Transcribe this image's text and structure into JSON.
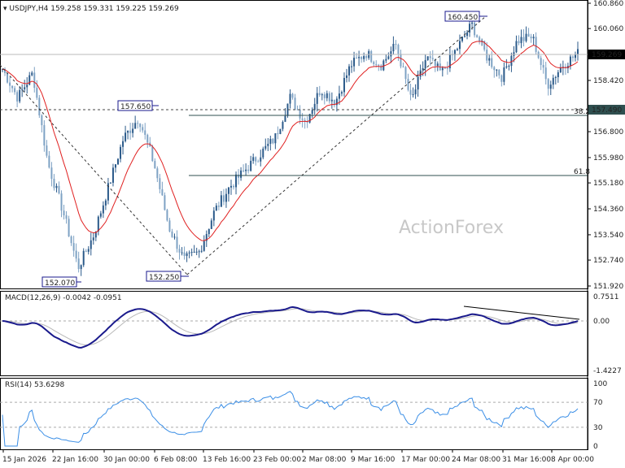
{
  "header": {
    "symbol": "USDJPY,H4",
    "ohlc": "159.258 159.331 159.225 159.269"
  },
  "watermark": "ActionForex",
  "colors": {
    "bull": "#2b5a8a",
    "bear": "#7ea2c4",
    "ma": "#e02020",
    "macd": "#1a1a8c",
    "signal": "#b8b8b8",
    "rsi": "#3a8ee6"
  },
  "chart_data": [
    {
      "type": "candlestick",
      "title": "USDJPY,H4",
      "ylim": [
        151.92,
        160.86
      ],
      "y_ticks": [
        "160.860",
        "160.060",
        "158.420",
        "156.800",
        "155.980",
        "155.180",
        "154.360",
        "153.540",
        "152.740",
        "151.920"
      ],
      "x_ticks": [
        "15 Jan 2026",
        "22 Jan 16:00",
        "30 Jan 00:00",
        "6 Feb 08:00",
        "13 Feb 16:00",
        "23 Feb 00:00",
        "2 Mar 08:00",
        "9 Mar 16:00",
        "17 Mar 00:00",
        "24 Mar 08:00",
        "31 Mar 16:00",
        "8 Apr 00:00"
      ],
      "approx_close_path": [
        158.78,
        157.88,
        158.65,
        155.8,
        154.28,
        152.5,
        153.5,
        155.05,
        156.6,
        157.24,
        155.8,
        153.77,
        152.74,
        153.0,
        154.28,
        155.05,
        155.57,
        156.08,
        156.6,
        157.88,
        157.1,
        158.14,
        157.75,
        158.9,
        159.29,
        158.9,
        159.55,
        157.75,
        159.16,
        158.65,
        159.42,
        160.19,
        159.16,
        158.52,
        159.68,
        159.8,
        158.27,
        158.9,
        159.27
      ],
      "current_price": "159.269",
      "swing_labels": [
        "160.450",
        "157.650",
        "152.070",
        "152.250"
      ],
      "levels": [
        {
          "price": "157.490",
          "label": "38.2"
        },
        {
          "price": 155.35,
          "label": "61.8"
        }
      ],
      "moving_average": "red line"
    },
    {
      "type": "line",
      "title": "MACD(12,26,9) -0.0042 -0.0951",
      "y_ticks": [
        "0.7511",
        "0.00",
        "-1.4227"
      ]
    },
    {
      "type": "line",
      "title": "RSI(14) 53.6298",
      "y_ticks": [
        "100",
        "70",
        "30",
        "0"
      ]
    }
  ]
}
